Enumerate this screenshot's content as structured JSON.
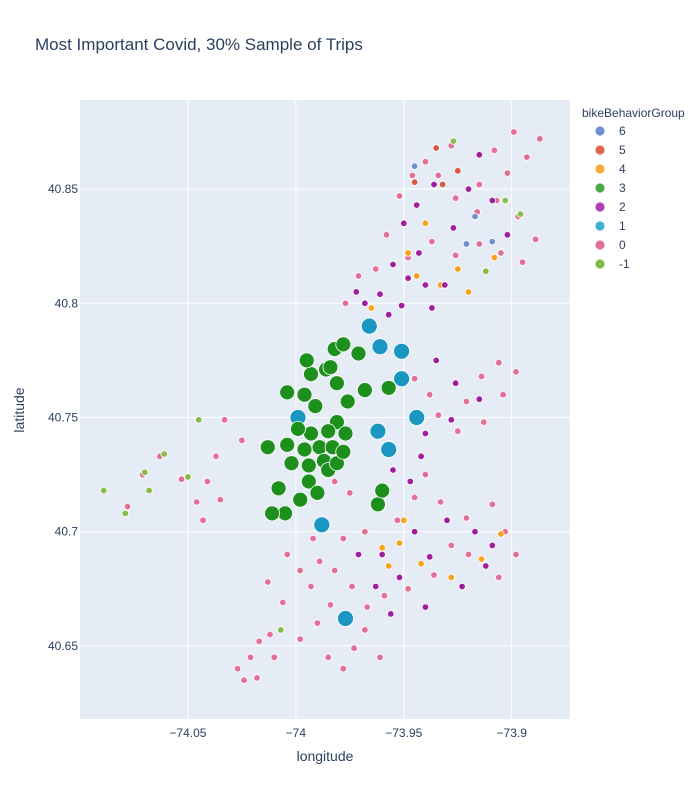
{
  "chart_data": {
    "type": "scatter",
    "title": "Most Important Covid, 30% Sample of Trips",
    "xlabel": "longitude",
    "ylabel": "latitude",
    "xlim": [
      -74.1,
      -73.873
    ],
    "ylim": [
      40.618,
      40.889
    ],
    "x_ticks": [
      -74.05,
      -74.0,
      -73.95,
      -73.9
    ],
    "x_tick_labels": [
      "−74.05",
      "−74",
      "−73.95",
      "−73.9"
    ],
    "y_ticks": [
      40.65,
      40.7,
      40.75,
      40.8,
      40.85
    ],
    "y_tick_labels": [
      "40.65",
      "40.7",
      "40.75",
      "40.8",
      "40.85"
    ],
    "grid": true,
    "legend": {
      "title": "bikeBehaviorGroup",
      "position": "right",
      "entries": [
        {
          "name": "6",
          "color": "#6f8fd1"
        },
        {
          "name": "5",
          "color": "#e2664f"
        },
        {
          "name": "4",
          "color": "#fbab3b"
        },
        {
          "name": "3",
          "color": "#4aa84a"
        },
        {
          "name": "2",
          "color": "#ad40b2"
        },
        {
          "name": "1",
          "color": "#42aed3"
        },
        {
          "name": "0",
          "color": "#e36f96"
        },
        {
          "name": "-1",
          "color": "#86bd47"
        }
      ]
    },
    "point_colors": {
      "0": "#e36f96",
      "1": "#1a97c1",
      "2": "#a01e9e",
      "3": "#1d8f1d",
      "4": "#f7a21c",
      "5": "#d9583f",
      "6": "#6f8fd1",
      "-1": "#86bd47"
    },
    "series": [
      {
        "name": "3",
        "points": [
          [
            -74.004,
            40.761,
            3
          ],
          [
            -73.996,
            40.76,
            3
          ],
          [
            -73.991,
            40.755,
            3
          ],
          [
            -73.981,
            40.765,
            3
          ],
          [
            -73.986,
            40.771,
            3
          ],
          [
            -73.993,
            40.769,
            3
          ],
          [
            -73.976,
            40.757,
            3
          ],
          [
            -73.981,
            40.748,
            3
          ],
          [
            -73.977,
            40.743,
            3
          ],
          [
            -73.985,
            40.744,
            3
          ],
          [
            -73.993,
            40.743,
            3
          ],
          [
            -73.999,
            40.745,
            3
          ],
          [
            -74.004,
            40.738,
            3
          ],
          [
            -73.996,
            40.736,
            3
          ],
          [
            -73.989,
            40.737,
            3
          ],
          [
            -73.983,
            40.737,
            3
          ],
          [
            -73.987,
            40.731,
            3
          ],
          [
            -73.994,
            40.729,
            3
          ],
          [
            -74.002,
            40.73,
            3
          ],
          [
            -73.994,
            40.722,
            3
          ],
          [
            -73.985,
            40.727,
            3
          ],
          [
            -73.981,
            40.73,
            3
          ],
          [
            -73.978,
            40.735,
            3
          ],
          [
            -73.99,
            40.717,
            3
          ],
          [
            -74.008,
            40.719,
            3
          ],
          [
            -74.005,
            40.708,
            3
          ],
          [
            -73.998,
            40.714,
            3
          ],
          [
            -73.962,
            40.712,
            3
          ],
          [
            -73.96,
            40.718,
            3
          ],
          [
            -73.968,
            40.762,
            3
          ],
          [
            -73.957,
            40.763,
            3
          ],
          [
            -73.971,
            40.778,
            3
          ],
          [
            -73.982,
            40.78,
            3
          ],
          [
            -73.984,
            40.772,
            3
          ],
          [
            -74.011,
            40.708,
            3
          ],
          [
            -74.013,
            40.737,
            3
          ],
          [
            -73.995,
            40.775,
            3
          ],
          [
            -73.978,
            40.782,
            3
          ]
        ]
      },
      {
        "name": "1",
        "points": [
          [
            -73.988,
            40.703,
            1
          ],
          [
            -73.977,
            40.662,
            1
          ],
          [
            -73.957,
            40.736,
            1
          ],
          [
            -73.951,
            40.767,
            1
          ],
          [
            -73.951,
            40.779,
            1
          ],
          [
            -73.966,
            40.79,
            1
          ],
          [
            -73.944,
            40.75,
            1
          ],
          [
            -73.961,
            40.781,
            1
          ],
          [
            -73.999,
            40.75,
            1
          ],
          [
            -73.962,
            40.744,
            1
          ]
        ]
      },
      {
        "name": "2",
        "points": [
          [
            -73.96,
            40.69,
            2
          ],
          [
            -73.945,
            40.7,
            2
          ],
          [
            -73.93,
            40.705,
            2
          ],
          [
            -73.917,
            40.7,
            2
          ],
          [
            -73.952,
            40.68,
            2
          ],
          [
            -73.938,
            40.689,
            2
          ],
          [
            -73.947,
            40.722,
            2
          ],
          [
            -73.955,
            40.727,
            2
          ],
          [
            -73.948,
            40.811,
            2
          ],
          [
            -73.951,
            40.799,
            2
          ],
          [
            -73.957,
            40.795,
            2
          ],
          [
            -73.94,
            40.808,
            2
          ],
          [
            -73.943,
            40.822,
            2
          ],
          [
            -73.927,
            40.833,
            2
          ],
          [
            -73.92,
            40.85,
            2
          ],
          [
            -73.915,
            40.865,
            2
          ],
          [
            -73.95,
            40.835,
            2
          ],
          [
            -73.944,
            40.843,
            2
          ],
          [
            -73.936,
            40.852,
            2
          ],
          [
            -73.935,
            40.775,
            2
          ],
          [
            -73.926,
            40.765,
            2
          ],
          [
            -73.915,
            40.758,
            2
          ],
          [
            -73.928,
            40.749,
            2
          ],
          [
            -73.94,
            40.743,
            2
          ],
          [
            -73.968,
            40.8,
            2
          ],
          [
            -73.961,
            40.804,
            2
          ],
          [
            -73.972,
            40.805,
            2
          ],
          [
            -73.955,
            40.817,
            2
          ],
          [
            -73.963,
            40.676,
            2
          ],
          [
            -73.971,
            40.69,
            2
          ],
          [
            -73.909,
            40.694,
            2
          ],
          [
            -73.912,
            40.685,
            2
          ],
          [
            -73.923,
            40.676,
            2
          ],
          [
            -73.94,
            40.667,
            2
          ],
          [
            -73.956,
            40.664,
            2
          ],
          [
            -73.942,
            40.733,
            2
          ],
          [
            -73.909,
            40.845,
            2
          ],
          [
            -73.902,
            40.83,
            2
          ],
          [
            -73.937,
            40.798,
            2
          ],
          [
            -73.931,
            40.808,
            2
          ]
        ]
      },
      {
        "name": "0",
        "points": [
          [
            -74.025,
            40.74,
            0
          ],
          [
            -74.033,
            40.749,
            0
          ],
          [
            -74.037,
            40.733,
            0
          ],
          [
            -74.041,
            40.722,
            0
          ],
          [
            -74.046,
            40.713,
            0
          ],
          [
            -74.053,
            40.723,
            0
          ],
          [
            -74.063,
            40.733,
            0
          ],
          [
            -74.071,
            40.725,
            0
          ],
          [
            -74.078,
            40.711,
            0
          ],
          [
            -74.043,
            40.705,
            0
          ],
          [
            -74.035,
            40.714,
            0
          ],
          [
            -74.013,
            40.678,
            0
          ],
          [
            -74.006,
            40.669,
            0
          ],
          [
            -74.012,
            40.655,
            0
          ],
          [
            -74.021,
            40.645,
            0
          ],
          [
            -74.018,
            40.636,
            0
          ],
          [
            -74.027,
            40.64,
            0
          ],
          [
            -74.01,
            40.645,
            0
          ],
          [
            -73.998,
            40.653,
            0
          ],
          [
            -73.99,
            40.66,
            0
          ],
          [
            -73.985,
            40.645,
            0
          ],
          [
            -73.978,
            40.64,
            0
          ],
          [
            -73.973,
            40.649,
            0
          ],
          [
            -73.968,
            40.657,
            0
          ],
          [
            -73.982,
            40.683,
            0
          ],
          [
            -73.989,
            40.687,
            0
          ],
          [
            -73.998,
            40.683,
            0
          ],
          [
            -73.974,
            40.676,
            0
          ],
          [
            -73.967,
            40.667,
            0
          ],
          [
            -73.959,
            40.672,
            0
          ],
          [
            -73.948,
            40.675,
            0
          ],
          [
            -73.936,
            40.681,
            0
          ],
          [
            -73.928,
            40.694,
            0
          ],
          [
            -73.921,
            40.706,
            0
          ],
          [
            -73.909,
            40.712,
            0
          ],
          [
            -73.903,
            40.7,
            0
          ],
          [
            -73.898,
            40.69,
            0
          ],
          [
            -73.906,
            40.68,
            0
          ],
          [
            -73.92,
            40.69,
            0
          ],
          [
            -73.933,
            40.713,
            0
          ],
          [
            -73.94,
            40.725,
            0
          ],
          [
            -73.945,
            40.715,
            0
          ],
          [
            -73.953,
            40.705,
            0
          ],
          [
            -73.934,
            40.751,
            0
          ],
          [
            -73.921,
            40.757,
            0
          ],
          [
            -73.914,
            40.768,
            0
          ],
          [
            -73.906,
            40.774,
            0
          ],
          [
            -73.898,
            40.77,
            0
          ],
          [
            -73.904,
            40.76,
            0
          ],
          [
            -73.913,
            40.748,
            0
          ],
          [
            -73.925,
            40.744,
            0
          ],
          [
            -73.938,
            40.76,
            0
          ],
          [
            -73.945,
            40.767,
            0
          ],
          [
            -73.948,
            40.82,
            0
          ],
          [
            -73.937,
            40.827,
            0
          ],
          [
            -73.926,
            40.821,
            0
          ],
          [
            -73.915,
            40.826,
            0
          ],
          [
            -73.905,
            40.822,
            0
          ],
          [
            -73.895,
            40.818,
            0
          ],
          [
            -73.889,
            40.828,
            0
          ],
          [
            -73.897,
            40.838,
            0
          ],
          [
            -73.907,
            40.845,
            0
          ],
          [
            -73.916,
            40.84,
            0
          ],
          [
            -73.926,
            40.846,
            0
          ],
          [
            -73.934,
            40.856,
            0
          ],
          [
            -73.94,
            40.862,
            0
          ],
          [
            -73.928,
            40.869,
            0
          ],
          [
            -73.915,
            40.852,
            0
          ],
          [
            -73.902,
            40.857,
            0
          ],
          [
            -73.893,
            40.864,
            0
          ],
          [
            -73.887,
            40.872,
            0
          ],
          [
            -73.899,
            40.875,
            0
          ],
          [
            -73.908,
            40.867,
            0
          ],
          [
            -73.946,
            40.856,
            0
          ],
          [
            -73.952,
            40.847,
            0
          ],
          [
            -73.958,
            40.83,
            0
          ],
          [
            -73.963,
            40.815,
            0
          ],
          [
            -73.971,
            40.812,
            0
          ],
          [
            -73.977,
            40.8,
            0
          ],
          [
            -73.982,
            40.722,
            0
          ],
          [
            -73.975,
            40.717,
            0
          ],
          [
            -73.968,
            40.7,
            0
          ],
          [
            -73.978,
            40.697,
            0
          ],
          [
            -73.992,
            40.697,
            0
          ],
          [
            -74.004,
            40.69,
            0
          ],
          [
            -73.993,
            40.676,
            0
          ],
          [
            -73.984,
            40.668,
            0
          ],
          [
            -73.976,
            40.66,
            0
          ],
          [
            -74.017,
            40.652,
            0
          ],
          [
            -74.024,
            40.635,
            0
          ],
          [
            -73.961,
            40.645,
            0
          ]
        ]
      },
      {
        "name": "4",
        "points": [
          [
            -73.95,
            40.705,
            4
          ],
          [
            -73.952,
            40.695,
            4
          ],
          [
            -73.96,
            40.693,
            4
          ],
          [
            -73.942,
            40.686,
            4
          ],
          [
            -73.928,
            40.68,
            4
          ],
          [
            -73.914,
            40.688,
            4
          ],
          [
            -73.905,
            40.699,
            4
          ],
          [
            -73.957,
            40.685,
            4
          ],
          [
            -73.948,
            40.822,
            4
          ],
          [
            -73.944,
            40.812,
            4
          ],
          [
            -73.933,
            40.808,
            4
          ],
          [
            -73.925,
            40.815,
            4
          ],
          [
            -73.908,
            40.82,
            4
          ],
          [
            -73.94,
            40.835,
            4
          ],
          [
            -73.92,
            40.805,
            4
          ],
          [
            -73.965,
            40.798,
            4
          ]
        ]
      },
      {
        "name": "5",
        "points": [
          [
            -73.935,
            40.868,
            5
          ],
          [
            -73.932,
            40.852,
            5
          ],
          [
            -73.925,
            40.858,
            5
          ],
          [
            -73.945,
            40.853,
            5
          ]
        ]
      },
      {
        "name": "6",
        "points": [
          [
            -73.917,
            40.838,
            6
          ],
          [
            -73.909,
            40.827,
            6
          ],
          [
            -73.945,
            40.86,
            6
          ],
          [
            -73.921,
            40.826,
            6
          ]
        ]
      },
      {
        "name": "-1",
        "points": [
          [
            -74.068,
            40.718,
            -1
          ],
          [
            -74.07,
            40.726,
            -1
          ],
          [
            -74.061,
            40.734,
            -1
          ],
          [
            -74.05,
            40.724,
            -1
          ],
          [
            -74.045,
            40.749,
            -1
          ],
          [
            -74.089,
            40.718,
            -1
          ],
          [
            -74.079,
            40.708,
            -1
          ],
          [
            -74.007,
            40.657,
            -1
          ],
          [
            -73.903,
            40.845,
            -1
          ],
          [
            -73.896,
            40.839,
            -1
          ],
          [
            -73.927,
            40.871,
            -1
          ],
          [
            -73.912,
            40.814,
            -1
          ]
        ]
      }
    ]
  }
}
